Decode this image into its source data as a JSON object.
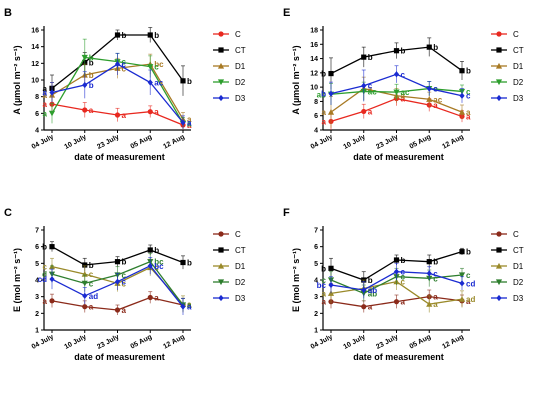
{
  "chart_data": [
    {
      "type": "line",
      "panel": "B",
      "ylabel": "A (µmol m⁻² s⁻¹)",
      "xlabel": "date of measurement",
      "categories": [
        "04 July",
        "10 July",
        "23 July",
        "05 Aug",
        "12 Aug"
      ],
      "ylim": [
        4,
        16
      ],
      "yticks": [
        4,
        6,
        8,
        10,
        12,
        14,
        16
      ],
      "series": [
        {
          "name": "C",
          "color": "#e8281f",
          "marker": "circle",
          "values": [
            7.1,
            6.4,
            5.8,
            6.2,
            4.6
          ],
          "err": [
            1.0,
            0.9,
            0.8,
            0.7,
            0.6
          ],
          "letters": [
            "a",
            "a",
            "a",
            "a",
            "a"
          ]
        },
        {
          "name": "CT",
          "color": "#000000",
          "marker": "square",
          "values": [
            9.0,
            12.1,
            15.4,
            15.4,
            9.9
          ],
          "err": [
            1.6,
            1.2,
            0.6,
            0.9,
            1.8
          ],
          "letters": [
            "a",
            "b",
            "b",
            "b",
            "b"
          ]
        },
        {
          "name": "D1",
          "color": "#a87a24",
          "marker": "triangle",
          "values": [
            8.2,
            10.6,
            11.4,
            11.9,
            5.3
          ],
          "err": [
            1.5,
            1.3,
            1.2,
            1.2,
            0.8
          ],
          "letters": [
            "a",
            "b",
            "c",
            "bc",
            "a"
          ]
        },
        {
          "name": "D2",
          "color": "#2e9e2e",
          "marker": "tri-down",
          "values": [
            6.0,
            12.7,
            12.2,
            11.6,
            4.8
          ],
          "err": [
            1.2,
            2.2,
            1.0,
            1.3,
            0.7
          ],
          "letters": [
            "a",
            "b",
            "c",
            "c",
            "a"
          ]
        },
        {
          "name": "D3",
          "color": "#1a2bd1",
          "marker": "diamond",
          "values": [
            8.5,
            9.4,
            11.9,
            9.7,
            4.9
          ],
          "err": [
            1.2,
            1.6,
            1.3,
            1.5,
            0.8
          ],
          "letters": [
            "a",
            "b",
            "c",
            "ac",
            "a"
          ]
        }
      ],
      "legend": "right"
    },
    {
      "type": "line",
      "panel": "E",
      "ylabel": "A (µmol m⁻² s⁻¹)",
      "xlabel": "date of measurement",
      "categories": [
        "04 July",
        "10 July",
        "23 July",
        "05 Aug",
        "12 Aug"
      ],
      "ylim": [
        4,
        18
      ],
      "yticks": [
        4,
        6,
        8,
        10,
        12,
        14,
        16,
        18
      ],
      "series": [
        {
          "name": "C",
          "color": "#e8281f",
          "marker": "circle",
          "values": [
            5.2,
            6.6,
            8.4,
            7.5,
            5.9
          ],
          "err": [
            1.2,
            1.0,
            1.0,
            0.9,
            0.8
          ],
          "letters": [
            "a",
            "a",
            "a",
            "a",
            "a"
          ]
        },
        {
          "name": "CT",
          "color": "#000000",
          "marker": "square",
          "values": [
            11.9,
            14.2,
            15.1,
            15.6,
            12.3
          ],
          "err": [
            2.2,
            1.4,
            1.1,
            1.3,
            1.3
          ],
          "letters": [
            "b",
            "b",
            "b",
            "b",
            "b"
          ]
        },
        {
          "name": "D1",
          "color": "#a87a24",
          "marker": "triangle",
          "values": [
            6.5,
            9.8,
            8.8,
            8.3,
            6.5
          ],
          "err": [
            2.2,
            1.6,
            1.0,
            1.0,
            1.0
          ],
          "letters": [
            "a",
            "a",
            "a",
            "ac",
            "a"
          ]
        },
        {
          "name": "D2",
          "color": "#2e9e2e",
          "marker": "tri-down",
          "values": [
            9.0,
            9.4,
            9.3,
            9.8,
            9.4
          ],
          "err": [
            1.5,
            1.3,
            1.1,
            1.0,
            0.9
          ],
          "letters": [
            "ab",
            "ac",
            "ac",
            "c",
            "c"
          ]
        },
        {
          "name": "D3",
          "color": "#1a2bd1",
          "marker": "diamond",
          "values": [
            9.1,
            10.2,
            11.8,
            9.8,
            8.8
          ],
          "err": [
            1.6,
            2.2,
            1.2,
            1.0,
            1.0
          ],
          "letters": [
            "b",
            "c",
            "c",
            "c",
            "c"
          ]
        }
      ],
      "legend": "right"
    },
    {
      "type": "line",
      "panel": "C",
      "ylabel": "E (mol m⁻² s⁻¹)",
      "xlabel": "date of measurement",
      "categories": [
        "04 July",
        "10 July",
        "23 July",
        "05 Aug",
        "12 Aug"
      ],
      "ylim": [
        1,
        7
      ],
      "yticks": [
        1,
        2,
        3,
        4,
        5,
        6,
        7
      ],
      "series": [
        {
          "name": "C",
          "color": "#8b2a1a",
          "marker": "circle",
          "values": [
            2.75,
            2.4,
            2.2,
            2.95,
            2.5
          ],
          "err": [
            0.4,
            0.35,
            0.3,
            0.35,
            0.4
          ],
          "letters": [
            "a",
            "a",
            "a",
            "a",
            "a"
          ]
        },
        {
          "name": "CT",
          "color": "#000000",
          "marker": "square",
          "values": [
            6.0,
            4.9,
            5.1,
            5.8,
            5.05
          ],
          "err": [
            0.3,
            0.4,
            0.3,
            0.3,
            0.4
          ],
          "letters": [
            "b",
            "b",
            "b",
            "b",
            "b"
          ]
        },
        {
          "name": "D1",
          "color": "#9a8a2a",
          "marker": "triangle",
          "values": [
            4.8,
            4.35,
            3.8,
            4.75,
            2.55
          ],
          "err": [
            0.5,
            0.5,
            0.5,
            0.5,
            0.5
          ],
          "letters": [
            "c",
            "c",
            "c",
            "c",
            "a"
          ]
        },
        {
          "name": "D2",
          "color": "#2e7e2e",
          "marker": "tri-down",
          "values": [
            4.35,
            3.8,
            4.3,
            5.1,
            2.5
          ],
          "err": [
            0.5,
            0.5,
            0.5,
            0.5,
            0.4
          ],
          "letters": [
            "d",
            "c",
            "c",
            "bc",
            "a"
          ]
        },
        {
          "name": "D3",
          "color": "#1a2bd1",
          "marker": "diamond",
          "values": [
            4.05,
            3.05,
            3.9,
            4.85,
            2.4
          ],
          "err": [
            0.6,
            0.5,
            0.5,
            0.5,
            0.5
          ],
          "letters": [
            "cd",
            "ad",
            "c",
            "bc",
            "a"
          ]
        }
      ],
      "legend": "right"
    },
    {
      "type": "line",
      "panel": "F",
      "ylabel": "E (mol m⁻² s⁻¹)",
      "xlabel": "date of measurement",
      "categories": [
        "04 July",
        "10 July",
        "23 July",
        "05 Aug",
        "12 Aug"
      ],
      "ylim": [
        1,
        7
      ],
      "yticks": [
        1,
        2,
        3,
        4,
        5,
        6,
        7
      ],
      "series": [
        {
          "name": "C",
          "color": "#8b2a1a",
          "marker": "circle",
          "values": [
            2.7,
            2.4,
            2.7,
            3.0,
            2.75
          ],
          "err": [
            0.4,
            0.35,
            0.4,
            0.4,
            0.35
          ],
          "letters": [
            "a",
            "a",
            "a",
            "a",
            "a"
          ]
        },
        {
          "name": "CT",
          "color": "#000000",
          "marker": "square",
          "values": [
            4.7,
            4.0,
            5.2,
            5.1,
            5.7
          ],
          "err": [
            0.6,
            0.5,
            0.3,
            0.4,
            0.2
          ],
          "letters": [
            "b",
            "b",
            "b",
            "b",
            "b"
          ]
        },
        {
          "name": "D1",
          "color": "#9a8a2a",
          "marker": "triangle",
          "values": [
            3.2,
            3.5,
            3.9,
            2.55,
            2.85
          ],
          "err": [
            0.6,
            0.5,
            0.5,
            0.5,
            0.5
          ],
          "letters": [
            "a",
            "a",
            "c",
            "a",
            "ad"
          ]
        },
        {
          "name": "D2",
          "color": "#2e7e2e",
          "marker": "tri-down",
          "values": [
            4.0,
            3.2,
            4.2,
            4.1,
            4.3
          ],
          "err": [
            0.5,
            0.5,
            0.5,
            0.5,
            0.4
          ],
          "letters": [
            "c",
            "ab",
            "c",
            "c",
            "c"
          ]
        },
        {
          "name": "D3",
          "color": "#1a2bd1",
          "marker": "diamond",
          "values": [
            3.7,
            3.4,
            4.5,
            4.4,
            3.8
          ],
          "err": [
            0.5,
            0.5,
            0.5,
            0.4,
            0.4
          ],
          "letters": [
            "bc",
            "ab",
            "c",
            "c",
            "cd"
          ]
        }
      ],
      "legend": "right"
    }
  ]
}
